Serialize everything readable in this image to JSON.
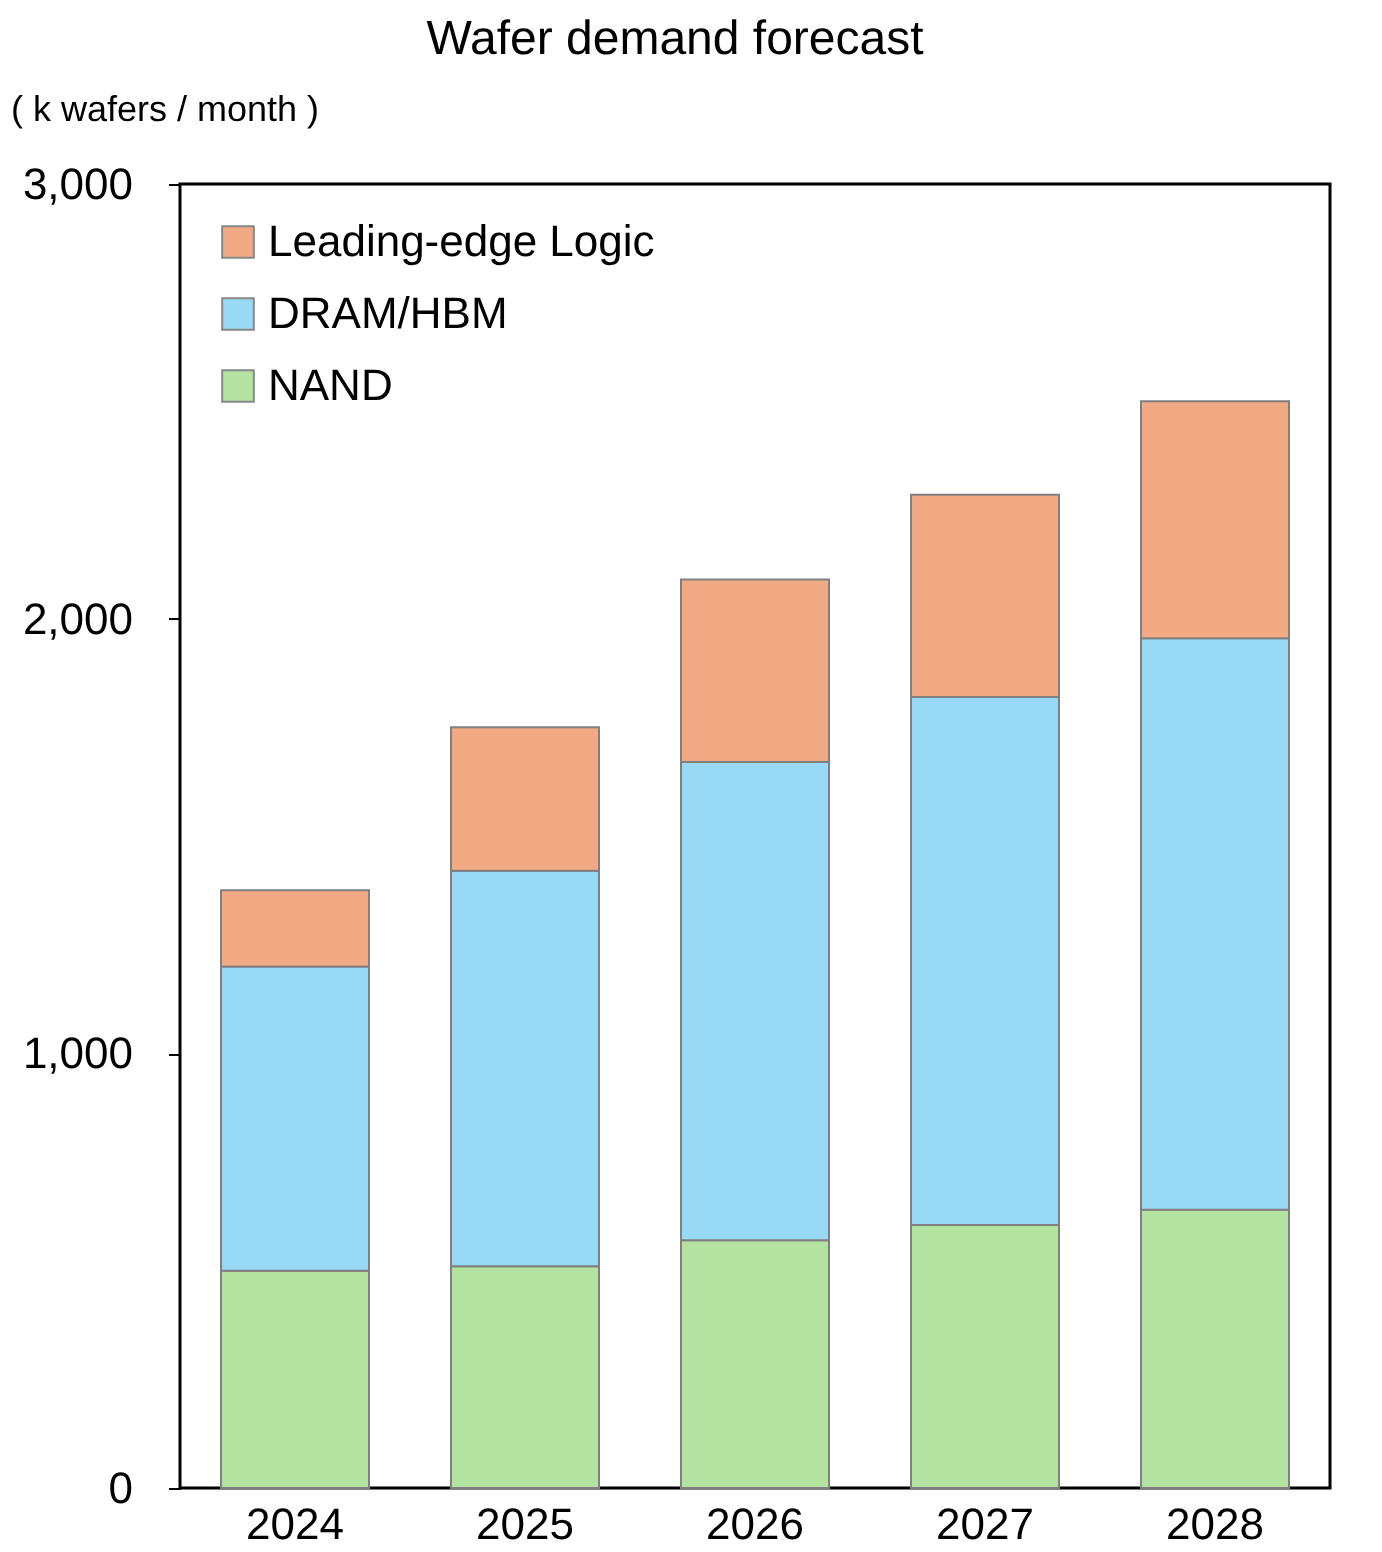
{
  "chart_data": {
    "type": "bar",
    "title": "Wafer demand forecast",
    "ylabel": "( k wafers / month )",
    "categories": [
      "2024",
      "2025",
      "2026",
      "2027",
      "2028"
    ],
    "stacked": true,
    "ylim": [
      0,
      3000
    ],
    "yticks": [
      0,
      {
        "value": 1000,
        "label": "1,000"
      },
      {
        "value": 2000,
        "label": "2,000"
      },
      {
        "value": 3000,
        "label": "3,000"
      }
    ],
    "grid": false,
    "legend": "top left",
    "series": [
      {
        "name": "NAND",
        "color": "#b3e2a1",
        "values": [
          500,
          510,
          570,
          605,
          640
        ]
      },
      {
        "name": "DRAM/HBM",
        "color": "#98d9f5",
        "values": [
          700,
          910,
          1100,
          1215,
          1315
        ]
      },
      {
        "name": "Leading-edge Logic",
        "color": "#f2aa85",
        "values": [
          175,
          330,
          420,
          465,
          545
        ]
      }
    ]
  }
}
